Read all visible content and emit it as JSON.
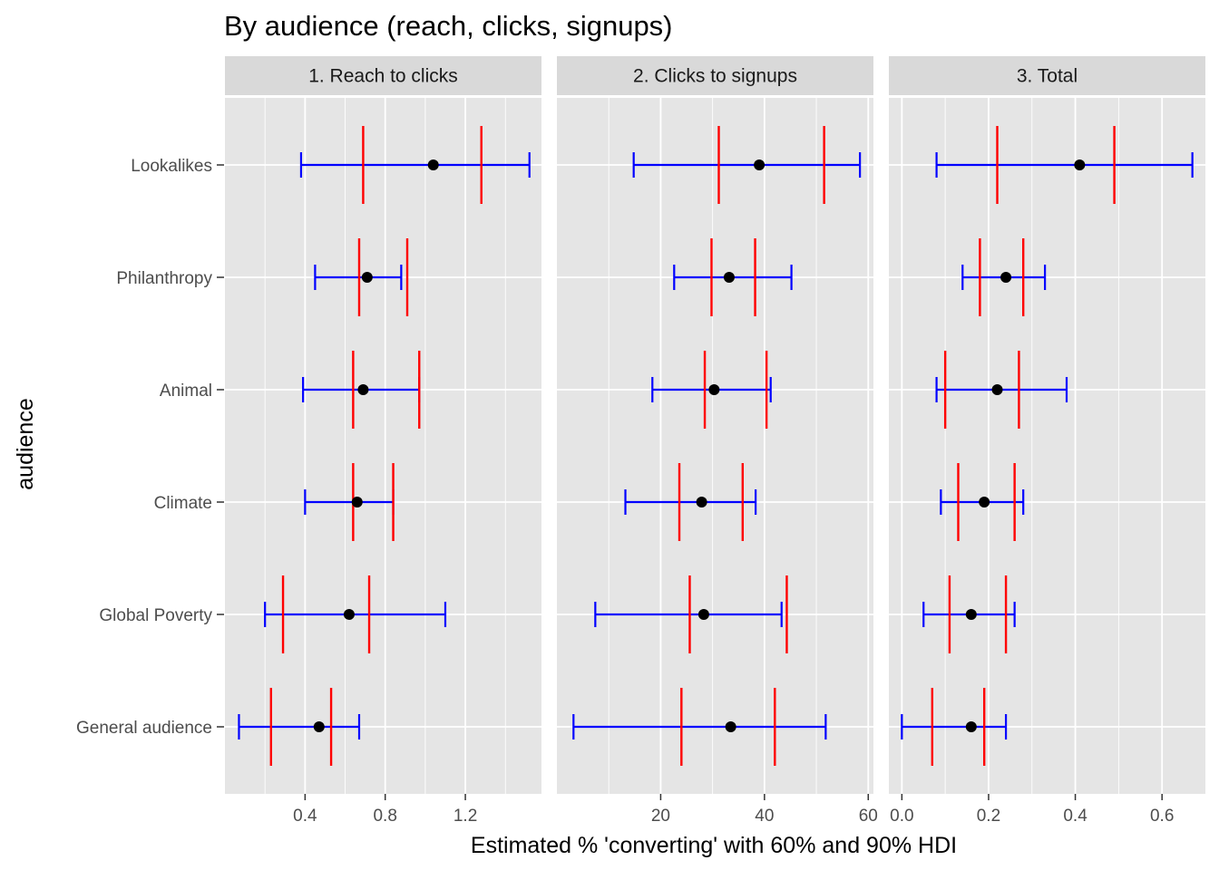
{
  "chart_data": {
    "type": "errorbar",
    "title": "By audience (reach, clicks, signups)",
    "xlabel": "Estimated % 'converting' with 60% and 90% HDI",
    "ylabel": "audience",
    "categories": [
      "Lookalikes",
      "Philanthropy",
      "Animal",
      "Climate",
      "Global Poverty",
      "General audience"
    ],
    "colors": {
      "panel_bg": "#e5e5e5",
      "strip_bg": "#d9d9d9",
      "grid": "#ffffff",
      "point": "#000000",
      "hdi90": "#0000ff",
      "hdi60": "#ff0000"
    },
    "grid": true,
    "panels": [
      {
        "label": "1. Reach to clicks",
        "xlim": [
          0.0,
          1.58
        ],
        "xticks": [
          0.4,
          0.8,
          1.2
        ],
        "xtick_labels": [
          "0.4",
          "0.8",
          "1.2"
        ],
        "minor_ticks": [
          0.2,
          0.6,
          1.0,
          1.4
        ],
        "rows": [
          {
            "audience": "Lookalikes",
            "point": 1.04,
            "hdi90": [
              0.38,
              1.52
            ],
            "hdi60": [
              0.69,
              1.28
            ]
          },
          {
            "audience": "Philanthropy",
            "point": 0.71,
            "hdi90": [
              0.45,
              0.88
            ],
            "hdi60": [
              0.67,
              0.91
            ]
          },
          {
            "audience": "Animal",
            "point": 0.69,
            "hdi90": [
              0.39,
              0.97
            ],
            "hdi60": [
              0.64,
              0.97
            ]
          },
          {
            "audience": "Climate",
            "point": 0.66,
            "hdi90": [
              0.4,
              0.84
            ],
            "hdi60": [
              0.64,
              0.84
            ]
          },
          {
            "audience": "Global Poverty",
            "point": 0.62,
            "hdi90": [
              0.2,
              1.1
            ],
            "hdi60": [
              0.29,
              0.72
            ]
          },
          {
            "audience": "General audience",
            "point": 0.47,
            "hdi90": [
              0.07,
              0.67
            ],
            "hdi60": [
              0.23,
              0.53
            ]
          }
        ]
      },
      {
        "label": "2. Clicks to signups",
        "xlim": [
          0,
          61
        ],
        "xticks": [
          20,
          40,
          60
        ],
        "xtick_labels": [
          "20",
          "40",
          "60"
        ],
        "minor_ticks": [
          10,
          30,
          50
        ],
        "rows": [
          {
            "audience": "Lookalikes",
            "point": 39.0,
            "hdi90": [
              14.8,
              58.4
            ],
            "hdi60": [
              31.2,
              51.5
            ]
          },
          {
            "audience": "Philanthropy",
            "point": 33.2,
            "hdi90": [
              22.6,
              45.2
            ],
            "hdi60": [
              29.8,
              38.2
            ]
          },
          {
            "audience": "Animal",
            "point": 30.3,
            "hdi90": [
              18.4,
              41.2
            ],
            "hdi60": [
              28.5,
              40.4
            ]
          },
          {
            "audience": "Climate",
            "point": 27.9,
            "hdi90": [
              13.2,
              38.3
            ],
            "hdi60": [
              23.6,
              35.8
            ]
          },
          {
            "audience": "Global Poverty",
            "point": 28.3,
            "hdi90": [
              7.4,
              43.3
            ],
            "hdi60": [
              25.6,
              44.3
            ]
          },
          {
            "audience": "General audience",
            "point": 33.5,
            "hdi90": [
              3.2,
              51.8
            ],
            "hdi60": [
              24.0,
              42.0
            ]
          }
        ]
      },
      {
        "label": "3. Total",
        "xlim": [
          -0.03,
          0.7
        ],
        "xticks": [
          0.0,
          0.2,
          0.4,
          0.6
        ],
        "xtick_labels": [
          "0.0",
          "0.2",
          "0.4",
          "0.6"
        ],
        "minor_ticks": [
          0.1,
          0.3,
          0.5
        ],
        "rows": [
          {
            "audience": "Lookalikes",
            "point": 0.41,
            "hdi90": [
              0.08,
              0.67
            ],
            "hdi60": [
              0.22,
              0.49
            ]
          },
          {
            "audience": "Philanthropy",
            "point": 0.24,
            "hdi90": [
              0.14,
              0.33
            ],
            "hdi60": [
              0.18,
              0.28
            ]
          },
          {
            "audience": "Animal",
            "point": 0.22,
            "hdi90": [
              0.08,
              0.38
            ],
            "hdi60": [
              0.1,
              0.27
            ]
          },
          {
            "audience": "Climate",
            "point": 0.19,
            "hdi90": [
              0.09,
              0.28
            ],
            "hdi60": [
              0.13,
              0.26
            ]
          },
          {
            "audience": "Global Poverty",
            "point": 0.16,
            "hdi90": [
              0.05,
              0.26
            ],
            "hdi60": [
              0.11,
              0.24
            ]
          },
          {
            "audience": "General audience",
            "point": 0.16,
            "hdi90": [
              0.0,
              0.24
            ],
            "hdi60": [
              0.07,
              0.19
            ]
          }
        ]
      }
    ]
  }
}
